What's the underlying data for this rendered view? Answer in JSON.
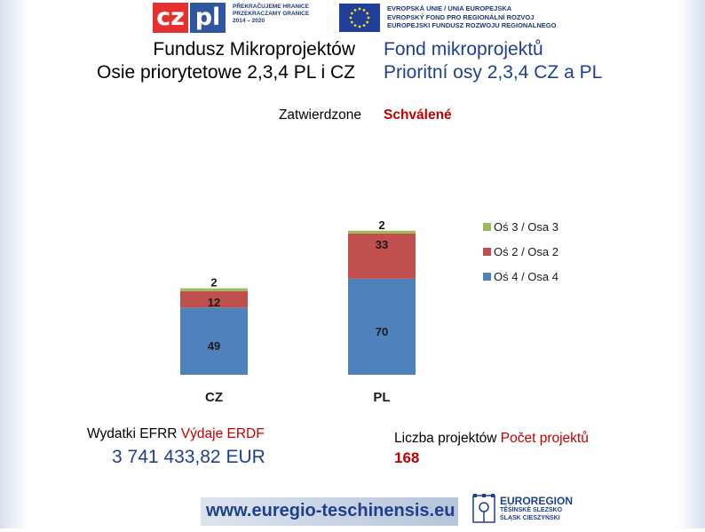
{
  "header": {
    "czpl_logo": {
      "cz": "cz",
      "pl": "pl",
      "lines": [
        "PŘEKRAČUJEME HRANICE",
        "PRZEKRACZAMY GRANICE",
        "2014 – 2020"
      ]
    },
    "eu_logo": {
      "lines": [
        "EVROPSKÁ UNIE / UNIA EUROPEJSKA",
        "EVROPSKÝ FOND PRO REGIONÁLNÍ ROZVOJ",
        "EUROPEJSKI FUNDUSZ ROZWOJU REGIONALNEGO"
      ]
    }
  },
  "titles": {
    "pl_line1": "Fundusz Mikroprojektów",
    "pl_line2": "Osie priorytetowe 2,3,4 PL i CZ",
    "cz_line1": "Fond mikroprojektů",
    "cz_line2": "Prioritní osy 2,3,4 CZ a PL",
    "approved_pl": "Zatwierdzone",
    "approved_cz": "Schválené"
  },
  "chart_data": {
    "type": "bar",
    "stacked": true,
    "categories": [
      "CZ",
      "PL"
    ],
    "series": [
      {
        "name": "Oś 4 / Osa 4",
        "values": [
          49,
          70
        ],
        "color": "#4f81bd"
      },
      {
        "name": "Oś 2 / Osa 2",
        "values": [
          12,
          33
        ],
        "color": "#c0504d"
      },
      {
        "name": "Oś 3 / Osa 3",
        "values": [
          2,
          2
        ],
        "color": "#9bbb59"
      }
    ],
    "legend_order": [
      "Oś 3 / Osa 3",
      "Oś 2 / Osa 2",
      "Oś 4 / Osa 4"
    ],
    "legend_position": "right",
    "grid": false,
    "ylim": [
      0,
      105
    ]
  },
  "stats": {
    "expenses_label_pl": "Wydatki EFRR ",
    "expenses_label_cz": "Výdaje ERDF",
    "expenses_value": "3 741 433,82 EUR",
    "count_label_pl": "Liczba projektów ",
    "count_label_cz": "Počet projektů",
    "count_value": "168"
  },
  "footer": {
    "url": "www.euregio-teschinensis.eu",
    "euroregion_name": "EUROREGION",
    "euroregion_line1": "TĚŠÍNSKÉ SLEZSKO",
    "euroregion_line2": "ŚLĄSK CIESZYŃSKI"
  }
}
